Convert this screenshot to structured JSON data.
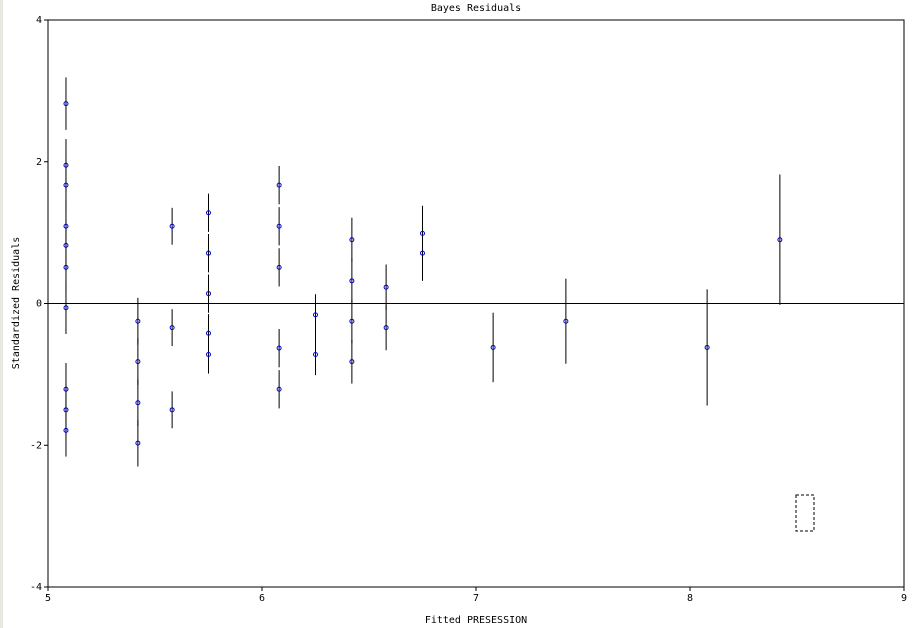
{
  "chart_data": {
    "type": "scatter",
    "title": "Bayes Residuals",
    "xlabel": "Fitted PRESESSION",
    "ylabel": "Standardized Residuals",
    "x": [
      5.084,
      5.084,
      5.084,
      5.084,
      5.084,
      5.084,
      5.084,
      5.084,
      5.084,
      5.084,
      5.42,
      5.42,
      5.42,
      5.42,
      5.58,
      5.58,
      5.58,
      5.75,
      5.75,
      5.75,
      5.75,
      5.75,
      6.08,
      6.08,
      6.08,
      6.08,
      6.08,
      6.25,
      6.25,
      6.42,
      6.42,
      6.42,
      6.42,
      6.58,
      6.58,
      6.75,
      6.75,
      7.08,
      7.42,
      8.08,
      8.42
    ],
    "values": [
      2.82,
      1.95,
      1.67,
      1.09,
      0.82,
      0.51,
      -0.06,
      -1.21,
      -1.5,
      -1.79,
      -0.25,
      -0.82,
      -1.4,
      -1.97,
      1.09,
      -0.34,
      -1.5,
      1.28,
      0.71,
      0.14,
      -0.42,
      -0.72,
      1.67,
      1.09,
      0.51,
      -0.63,
      -1.21,
      -0.16,
      -0.72,
      0.9,
      0.32,
      -0.25,
      -0.82,
      0.23,
      -0.34,
      0.99,
      0.71,
      -0.62,
      -0.25,
      -0.62,
      0.9
    ],
    "errors": [
      0.37,
      0.37,
      0.37,
      0.37,
      0.37,
      0.37,
      0.37,
      0.37,
      0.37,
      0.37,
      0.33,
      0.33,
      0.33,
      0.33,
      0.26,
      0.26,
      0.26,
      0.27,
      0.27,
      0.27,
      0.27,
      0.27,
      0.27,
      0.27,
      0.27,
      0.27,
      0.27,
      0.29,
      0.29,
      0.31,
      0.31,
      0.31,
      0.31,
      0.32,
      0.32,
      0.39,
      0.39,
      0.49,
      0.6,
      0.82,
      0.92
    ],
    "color": "#0000cc",
    "error_color": "#000000",
    "hline": 0,
    "xlim": [
      5,
      9
    ],
    "ylim": [
      -4,
      4
    ],
    "xticks": [
      5,
      6,
      7,
      8,
      9
    ],
    "yticks": [
      -4,
      -2,
      0,
      2,
      4
    ]
  }
}
